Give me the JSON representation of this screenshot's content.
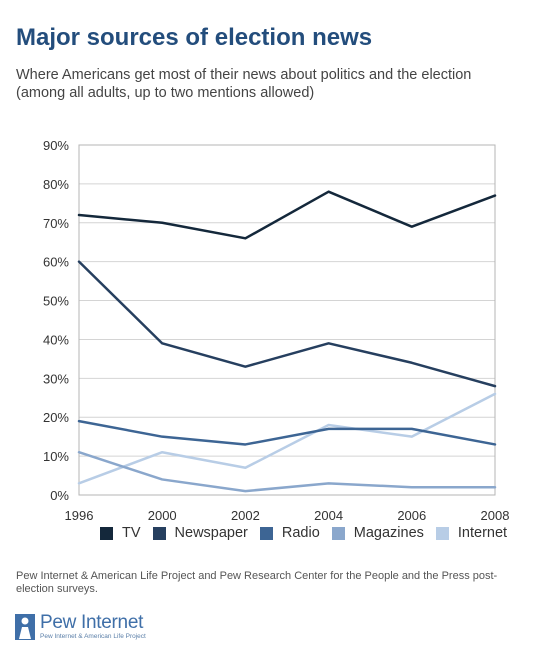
{
  "header": {
    "title": "Major sources of election news",
    "subtitle": "Where Americans get most of their news about politics and the election (among all adults, up to two mentions allowed)"
  },
  "chart_data": {
    "type": "line",
    "title": "Major sources of election news",
    "xlabel": "",
    "ylabel": "",
    "x": [
      "1996",
      "2000",
      "2002",
      "2004",
      "2006",
      "2008"
    ],
    "y_ticks": [
      "0%",
      "10%",
      "20%",
      "30%",
      "40%",
      "50%",
      "60%",
      "70%",
      "80%",
      "90%"
    ],
    "ylim": [
      0,
      90
    ],
    "grid": "horizontal",
    "legend": "bottom",
    "series": [
      {
        "name": "TV",
        "color": "#14283b",
        "values": [
          72,
          70,
          66,
          78,
          69,
          77
        ]
      },
      {
        "name": "Newspaper",
        "color": "#263f5f",
        "values": [
          60,
          39,
          33,
          39,
          34,
          28
        ]
      },
      {
        "name": "Radio",
        "color": "#3d6594",
        "values": [
          19,
          15,
          13,
          17,
          17,
          13
        ]
      },
      {
        "name": "Magazines",
        "color": "#8aa7cc",
        "values": [
          11,
          4,
          1,
          3,
          2,
          2
        ]
      },
      {
        "name": "Internet",
        "color": "#b8cde6",
        "values": [
          3,
          11,
          7,
          18,
          15,
          26
        ]
      }
    ]
  },
  "footer": {
    "source": "Pew Internet & American Life Project and Pew Research Center for the People and the Press post-election surveys.",
    "logo_name": "Pew Internet",
    "logo_tagline": "Pew Internet & American Life Project"
  }
}
